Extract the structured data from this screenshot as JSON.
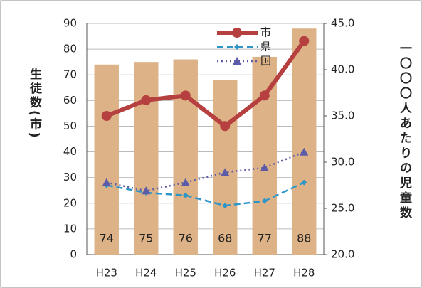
{
  "chart_data": {
    "type": "bar",
    "categories": [
      "H23",
      "H24",
      "H25",
      "H26",
      "H27",
      "H28"
    ],
    "y_label": "生徒数(市)",
    "y2_label": "一〇〇〇人あたりの児童数",
    "ylim": [
      0,
      90
    ],
    "yticks": [
      0,
      10,
      20,
      30,
      40,
      50,
      60,
      70,
      80,
      90
    ],
    "y2lim": [
      20,
      45
    ],
    "y2ticks": [
      {
        "value": 20,
        "label": "20.0"
      },
      {
        "value": 25,
        "label": "25.0"
      },
      {
        "value": 30,
        "label": "30.0"
      },
      {
        "value": 35,
        "label": "35.0"
      },
      {
        "value": 40,
        "label": "40.0"
      },
      {
        "value": 45,
        "label": "45.0"
      }
    ],
    "grid": true,
    "legend": "top",
    "series": [
      {
        "type": "bar",
        "color": "#dcb286",
        "values": [
          74,
          75,
          76,
          68,
          77,
          88
        ]
      },
      {
        "type": "line",
        "name": "市",
        "color": "#b5403f",
        "axis": "y2",
        "marker": "circle",
        "dash": "solid",
        "values": [
          35.0,
          36.7,
          37.2,
          33.9,
          37.2,
          43.1
        ]
      },
      {
        "type": "line",
        "name": "県",
        "color": "#2e95c8",
        "axis": "y2",
        "marker": "diamond",
        "dash": "dashed",
        "values": [
          27.5,
          26.7,
          26.4,
          25.3,
          25.8,
          27.8
        ]
      },
      {
        "type": "line",
        "name": "国",
        "color": "#5b5ba8",
        "axis": "y2",
        "marker": "triangle",
        "dash": "dotted",
        "values": [
          27.8,
          26.9,
          27.8,
          28.9,
          29.4,
          31.1
        ]
      }
    ]
  }
}
